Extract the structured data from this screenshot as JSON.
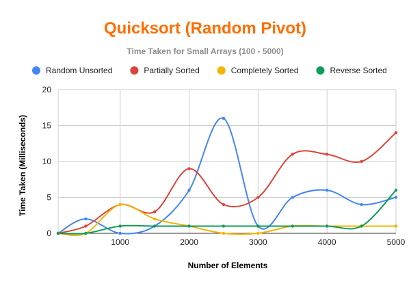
{
  "chart_data": {
    "type": "line",
    "title": "Quicksort (Random Pivot)",
    "subtitle": "Time Taken for Small Arrays (100 - 5000)",
    "xlabel": "Number of Elements",
    "ylabel": "Time Taken (Milliseconds)",
    "xlim": [
      100,
      5000
    ],
    "ylim": [
      0,
      20
    ],
    "x_ticks": [
      1000,
      2000,
      3000,
      4000,
      5000
    ],
    "y_ticks": [
      0,
      5,
      10,
      15,
      20
    ],
    "grid": true,
    "legend_position": "top",
    "x": [
      100,
      500,
      1000,
      1500,
      2000,
      2500,
      3000,
      3500,
      4000,
      4500,
      5000
    ],
    "series": [
      {
        "name": "Random Unsorted",
        "color": "#4285f4",
        "values": [
          0,
          2,
          0,
          1,
          6,
          16,
          1,
          5,
          6,
          4,
          5
        ]
      },
      {
        "name": "Partially Sorted",
        "color": "#db4437",
        "values": [
          0,
          1,
          4,
          3,
          9,
          4,
          5,
          11,
          11,
          10,
          14
        ]
      },
      {
        "name": "Completely Sorted",
        "color": "#f4b400",
        "values": [
          0,
          0,
          4,
          2,
          1,
          0,
          0,
          1,
          1,
          1,
          1
        ]
      },
      {
        "name": "Reverse Sorted",
        "color": "#0f9d58",
        "values": [
          0,
          0,
          1,
          1,
          1,
          1,
          1,
          1,
          1,
          1,
          6
        ]
      }
    ]
  }
}
